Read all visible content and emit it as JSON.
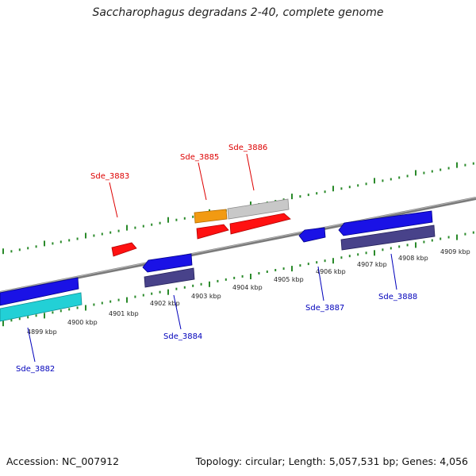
{
  "title": "Saccharophagus degradans 2-40, complete genome",
  "footer": {
    "accession": "Accession: NC_007912",
    "topology": "Topology: circular; Length: 5,057,531 bp; Genes: 4,056"
  },
  "colors": {
    "forward_gene_label": "#dd0000",
    "reverse_gene_label": "#0000bb",
    "tick": "#2a8a2a",
    "backbone": "#888888"
  },
  "tick_labels": [
    "4899 kbp",
    "4900 kbp",
    "4901 kbp",
    "4902 kbp",
    "4903 kbp",
    "4904 kbp",
    "4905 kbp",
    "4906 kbp",
    "4907 kbp",
    "4908 kbp",
    "4909 kbp"
  ],
  "gene_labels": {
    "forward": [
      "Sde_3883",
      "Sde_3885",
      "Sde_3886"
    ],
    "reverse": [
      "Sde_3882",
      "Sde_3884",
      "Sde_3887",
      "Sde_3888"
    ]
  }
}
